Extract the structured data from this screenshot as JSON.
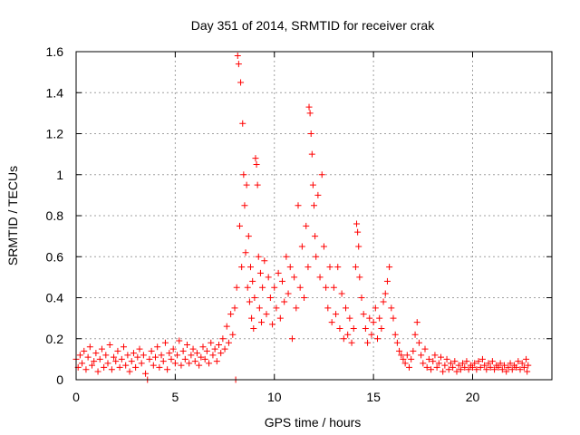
{
  "chart_data": {
    "type": "scatter",
    "title": "Day 351 of 2014, SRMTID for receiver crak",
    "xlabel": "GPS time / hours",
    "ylabel": "SRMTID / TECUs",
    "xlim": [
      0,
      24
    ],
    "ylim": [
      0,
      1.6
    ],
    "grid": true,
    "marker": "plus",
    "color": "#ff0000",
    "xticks": [
      0,
      5,
      10,
      15,
      20
    ],
    "xtick_labels": [
      "0",
      "5",
      "10",
      "15",
      "20"
    ],
    "yticks": [
      0,
      0.2,
      0.4,
      0.6,
      0.8,
      1,
      1.2,
      1.4,
      1.6
    ],
    "ytick_labels": [
      "0",
      "0.2",
      "0.4",
      "0.6",
      "0.8",
      "1",
      "1.2",
      "1.4",
      "1.6"
    ],
    "series": [
      {
        "name": "SRMTID",
        "points": [
          [
            0.0,
            0.1
          ],
          [
            0.1,
            0.06
          ],
          [
            0.2,
            0.12
          ],
          [
            0.3,
            0.08
          ],
          [
            0.4,
            0.14
          ],
          [
            0.5,
            0.05
          ],
          [
            0.6,
            0.11
          ],
          [
            0.7,
            0.16
          ],
          [
            0.8,
            0.07
          ],
          [
            0.9,
            0.09
          ],
          [
            1.0,
            0.13
          ],
          [
            1.1,
            0.04
          ],
          [
            1.2,
            0.1
          ],
          [
            1.3,
            0.15
          ],
          [
            1.4,
            0.06
          ],
          [
            1.5,
            0.12
          ],
          [
            1.6,
            0.08
          ],
          [
            1.7,
            0.17
          ],
          [
            1.8,
            0.05
          ],
          [
            1.9,
            0.11
          ],
          [
            2.0,
            0.09
          ],
          [
            2.1,
            0.14
          ],
          [
            2.2,
            0.06
          ],
          [
            2.3,
            0.1
          ],
          [
            2.4,
            0.16
          ],
          [
            2.5,
            0.07
          ],
          [
            2.6,
            0.12
          ],
          [
            2.7,
            0.04
          ],
          [
            2.8,
            0.09
          ],
          [
            2.9,
            0.13
          ],
          [
            3.0,
            0.06
          ],
          [
            3.1,
            0.11
          ],
          [
            3.2,
            0.15
          ],
          [
            3.3,
            0.08
          ],
          [
            3.4,
            0.12
          ],
          [
            3.5,
            0.03
          ],
          [
            3.6,
            0.0
          ],
          [
            3.7,
            0.1
          ],
          [
            3.8,
            0.14
          ],
          [
            3.9,
            0.07
          ],
          [
            4.0,
            0.11
          ],
          [
            4.1,
            0.16
          ],
          [
            4.2,
            0.06
          ],
          [
            4.3,
            0.12
          ],
          [
            4.4,
            0.09
          ],
          [
            4.5,
            0.18
          ],
          [
            4.6,
            0.05
          ],
          [
            4.7,
            0.13
          ],
          [
            4.8,
            0.1
          ],
          [
            4.9,
            0.15
          ],
          [
            5.0,
            0.08
          ],
          [
            5.1,
            0.12
          ],
          [
            5.2,
            0.19
          ],
          [
            5.3,
            0.07
          ],
          [
            5.4,
            0.14
          ],
          [
            5.5,
            0.1
          ],
          [
            5.6,
            0.17
          ],
          [
            5.7,
            0.08
          ],
          [
            5.8,
            0.12
          ],
          [
            5.9,
            0.15
          ],
          [
            6.0,
            0.09
          ],
          [
            6.1,
            0.13
          ],
          [
            6.2,
            0.07
          ],
          [
            6.3,
            0.11
          ],
          [
            6.4,
            0.16
          ],
          [
            6.5,
            0.1
          ],
          [
            6.6,
            0.14
          ],
          [
            6.7,
            0.08
          ],
          [
            6.8,
            0.18
          ],
          [
            6.9,
            0.12
          ],
          [
            7.0,
            0.15
          ],
          [
            7.1,
            0.09
          ],
          [
            7.2,
            0.17
          ],
          [
            7.3,
            0.13
          ],
          [
            7.4,
            0.2
          ],
          [
            7.5,
            0.15
          ],
          [
            7.6,
            0.26
          ],
          [
            7.7,
            0.18
          ],
          [
            7.8,
            0.32
          ],
          [
            7.9,
            0.22
          ],
          [
            8.0,
            0.35
          ],
          [
            8.05,
            0.0
          ],
          [
            8.1,
            0.45
          ],
          [
            8.15,
            1.58
          ],
          [
            8.2,
            1.54
          ],
          [
            8.25,
            0.75
          ],
          [
            8.3,
            1.45
          ],
          [
            8.35,
            0.55
          ],
          [
            8.4,
            1.25
          ],
          [
            8.45,
            1.0
          ],
          [
            8.5,
            0.85
          ],
          [
            8.55,
            0.62
          ],
          [
            8.6,
            0.95
          ],
          [
            8.65,
            0.45
          ],
          [
            8.7,
            0.7
          ],
          [
            8.75,
            0.38
          ],
          [
            8.8,
            0.55
          ],
          [
            8.85,
            0.3
          ],
          [
            8.9,
            0.48
          ],
          [
            8.95,
            0.25
          ],
          [
            9.0,
            0.4
          ],
          [
            9.05,
            1.08
          ],
          [
            9.1,
            1.05
          ],
          [
            9.15,
            0.95
          ],
          [
            9.2,
            0.6
          ],
          [
            9.25,
            0.35
          ],
          [
            9.3,
            0.52
          ],
          [
            9.35,
            0.28
          ],
          [
            9.4,
            0.45
          ],
          [
            9.5,
            0.58
          ],
          [
            9.6,
            0.32
          ],
          [
            9.7,
            0.5
          ],
          [
            9.8,
            0.4
          ],
          [
            9.9,
            0.27
          ],
          [
            10.0,
            0.45
          ],
          [
            10.1,
            0.35
          ],
          [
            10.2,
            0.52
          ],
          [
            10.3,
            0.3
          ],
          [
            10.4,
            0.48
          ],
          [
            10.5,
            0.38
          ],
          [
            10.6,
            0.6
          ],
          [
            10.7,
            0.42
          ],
          [
            10.8,
            0.55
          ],
          [
            10.9,
            0.2
          ],
          [
            11.0,
            0.5
          ],
          [
            11.1,
            0.35
          ],
          [
            11.2,
            0.85
          ],
          [
            11.3,
            0.45
          ],
          [
            11.4,
            0.65
          ],
          [
            11.5,
            0.4
          ],
          [
            11.6,
            0.75
          ],
          [
            11.7,
            0.55
          ],
          [
            11.75,
            1.33
          ],
          [
            11.8,
            1.3
          ],
          [
            11.85,
            1.2
          ],
          [
            11.9,
            1.1
          ],
          [
            11.95,
            0.95
          ],
          [
            12.0,
            0.85
          ],
          [
            12.05,
            0.7
          ],
          [
            12.1,
            0.6
          ],
          [
            12.2,
            0.9
          ],
          [
            12.3,
            0.5
          ],
          [
            12.4,
            1.0
          ],
          [
            12.5,
            0.65
          ],
          [
            12.6,
            0.45
          ],
          [
            12.7,
            0.35
          ],
          [
            12.8,
            0.55
          ],
          [
            12.9,
            0.28
          ],
          [
            13.0,
            0.45
          ],
          [
            13.1,
            0.32
          ],
          [
            13.2,
            0.55
          ],
          [
            13.3,
            0.25
          ],
          [
            13.4,
            0.42
          ],
          [
            13.5,
            0.2
          ],
          [
            13.6,
            0.35
          ],
          [
            13.7,
            0.22
          ],
          [
            13.8,
            0.3
          ],
          [
            13.9,
            0.18
          ],
          [
            14.0,
            0.25
          ],
          [
            14.1,
            0.55
          ],
          [
            14.15,
            0.76
          ],
          [
            14.2,
            0.72
          ],
          [
            14.25,
            0.65
          ],
          [
            14.3,
            0.5
          ],
          [
            14.4,
            0.4
          ],
          [
            14.5,
            0.32
          ],
          [
            14.6,
            0.25
          ],
          [
            14.7,
            0.18
          ],
          [
            14.8,
            0.3
          ],
          [
            14.9,
            0.22
          ],
          [
            15.0,
            0.28
          ],
          [
            15.1,
            0.35
          ],
          [
            15.2,
            0.2
          ],
          [
            15.3,
            0.3
          ],
          [
            15.4,
            0.25
          ],
          [
            15.5,
            0.38
          ],
          [
            15.6,
            0.42
          ],
          [
            15.7,
            0.48
          ],
          [
            15.8,
            0.55
          ],
          [
            15.9,
            0.35
          ],
          [
            16.0,
            0.3
          ],
          [
            16.1,
            0.22
          ],
          [
            16.2,
            0.18
          ],
          [
            16.3,
            0.14
          ],
          [
            16.4,
            0.12
          ],
          [
            16.5,
            0.1
          ],
          [
            16.6,
            0.08
          ],
          [
            16.7,
            0.12
          ],
          [
            16.8,
            0.06
          ],
          [
            16.9,
            0.1
          ],
          [
            17.0,
            0.14
          ],
          [
            17.1,
            0.22
          ],
          [
            17.2,
            0.28
          ],
          [
            17.3,
            0.18
          ],
          [
            17.4,
            0.12
          ],
          [
            17.5,
            0.08
          ],
          [
            17.6,
            0.15
          ],
          [
            17.7,
            0.06
          ],
          [
            17.8,
            0.1
          ],
          [
            17.9,
            0.05
          ],
          [
            18.0,
            0.09
          ],
          [
            18.1,
            0.12
          ],
          [
            18.2,
            0.06
          ],
          [
            18.3,
            0.08
          ],
          [
            18.4,
            0.11
          ],
          [
            18.5,
            0.04
          ],
          [
            18.6,
            0.07
          ],
          [
            18.7,
            0.1
          ],
          [
            18.8,
            0.05
          ],
          [
            18.9,
            0.08
          ],
          [
            19.0,
            0.06
          ],
          [
            19.1,
            0.09
          ],
          [
            19.2,
            0.04
          ],
          [
            19.3,
            0.07
          ],
          [
            19.4,
            0.05
          ],
          [
            19.5,
            0.08
          ],
          [
            19.6,
            0.06
          ],
          [
            19.7,
            0.09
          ],
          [
            19.8,
            0.05
          ],
          [
            19.9,
            0.07
          ],
          [
            20.0,
            0.06
          ],
          [
            20.1,
            0.08
          ],
          [
            20.2,
            0.05
          ],
          [
            20.3,
            0.09
          ],
          [
            20.4,
            0.06
          ],
          [
            20.5,
            0.1
          ],
          [
            20.6,
            0.07
          ],
          [
            20.7,
            0.05
          ],
          [
            20.8,
            0.08
          ],
          [
            20.9,
            0.06
          ],
          [
            21.0,
            0.09
          ],
          [
            21.1,
            0.05
          ],
          [
            21.2,
            0.07
          ],
          [
            21.3,
            0.06
          ],
          [
            21.4,
            0.08
          ],
          [
            21.5,
            0.05
          ],
          [
            21.6,
            0.07
          ],
          [
            21.7,
            0.04
          ],
          [
            21.8,
            0.06
          ],
          [
            21.9,
            0.08
          ],
          [
            22.0,
            0.05
          ],
          [
            22.1,
            0.07
          ],
          [
            22.2,
            0.06
          ],
          [
            22.3,
            0.09
          ],
          [
            22.4,
            0.05
          ],
          [
            22.5,
            0.08
          ],
          [
            22.6,
            0.06
          ],
          [
            22.7,
            0.1
          ],
          [
            22.75,
            0.04
          ],
          [
            22.8,
            0.07
          ]
        ]
      }
    ]
  }
}
